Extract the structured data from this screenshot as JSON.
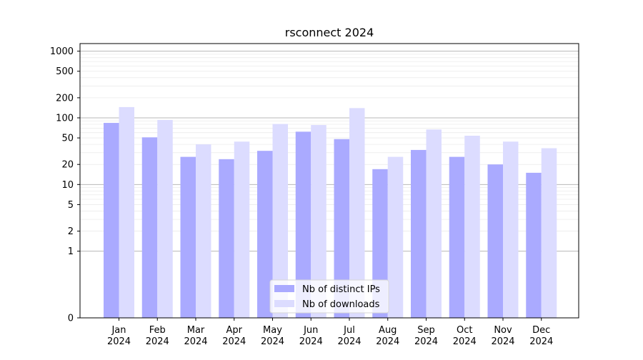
{
  "chart_data": {
    "type": "bar",
    "title": "rsconnect 2024",
    "xlabel": "",
    "ylabel": "",
    "yscale": "symlog",
    "ylim": [
      0,
      1300
    ],
    "y_ticks": [
      0,
      1,
      2,
      5,
      10,
      20,
      50,
      100,
      200,
      500,
      1000
    ],
    "y_tick_labels": [
      "0",
      "1",
      "2",
      "5",
      "10",
      "20",
      "50",
      "100",
      "200",
      "500",
      "1000"
    ],
    "categories": [
      [
        "Jan",
        "2024"
      ],
      [
        "Feb",
        "2024"
      ],
      [
        "Mar",
        "2024"
      ],
      [
        "Apr",
        "2024"
      ],
      [
        "May",
        "2024"
      ],
      [
        "Jun",
        "2024"
      ],
      [
        "Jul",
        "2024"
      ],
      [
        "Aug",
        "2024"
      ],
      [
        "Sep",
        "2024"
      ],
      [
        "Oct",
        "2024"
      ],
      [
        "Nov",
        "2024"
      ],
      [
        "Dec",
        "2024"
      ]
    ],
    "series": [
      {
        "name": "Nb of distinct IPs",
        "color": "#aaaaff",
        "values": [
          84,
          51,
          26,
          24,
          32,
          62,
          48,
          17,
          33,
          26,
          20,
          15
        ]
      },
      {
        "name": "Nb of downloads",
        "color": "#dcdcff",
        "values": [
          145,
          93,
          40,
          44,
          81,
          78,
          140,
          26,
          67,
          54,
          44,
          35
        ]
      }
    ],
    "grid": true,
    "legend": "lower center"
  }
}
